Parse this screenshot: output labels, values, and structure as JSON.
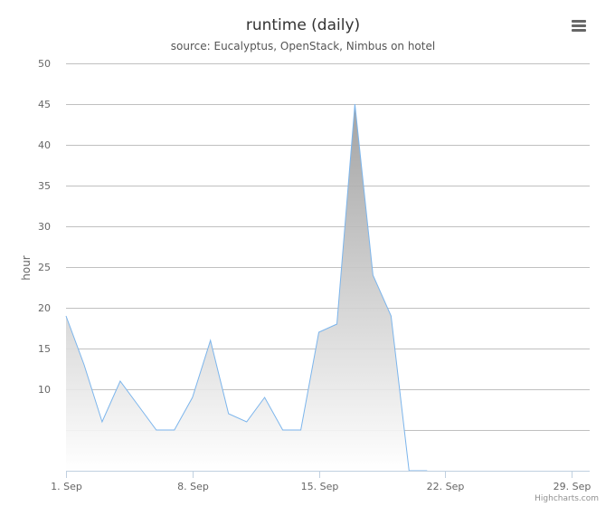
{
  "chart_data": {
    "type": "area",
    "title": "runtime (daily)",
    "subtitle": "source: Eucalyptus, OpenStack, Nimbus on hotel",
    "ylabel": "hour",
    "xlabel": "",
    "ylim": [
      0,
      50
    ],
    "yticks": [
      50,
      45,
      40,
      35,
      30,
      25,
      20,
      15,
      10
    ],
    "xlim": [
      "2023-09-01",
      "2023-09-30"
    ],
    "xticks": [
      {
        "date": "2023-09-01",
        "label": "1. Sep"
      },
      {
        "date": "2023-09-08",
        "label": "8. Sep"
      },
      {
        "date": "2023-09-15",
        "label": "15. Sep"
      },
      {
        "date": "2023-09-22",
        "label": "22. Sep"
      },
      {
        "date": "2023-09-29",
        "label": "29. Sep"
      }
    ],
    "x": [
      "2023-09-01",
      "2023-09-02",
      "2023-09-03",
      "2023-09-04",
      "2023-09-05",
      "2023-09-06",
      "2023-09-07",
      "2023-09-08",
      "2023-09-09",
      "2023-09-10",
      "2023-09-11",
      "2023-09-12",
      "2023-09-13",
      "2023-09-14",
      "2023-09-15",
      "2023-09-16",
      "2023-09-17",
      "2023-09-18",
      "2023-09-19",
      "2023-09-20",
      "2023-09-21"
    ],
    "series": [
      {
        "values": [
          19,
          13,
          6,
          11,
          8,
          5,
          5,
          9,
          16,
          7,
          6,
          9,
          5,
          5,
          17,
          18,
          45,
          24,
          19,
          0,
          0
        ]
      }
    ],
    "grid": true,
    "legend": "none",
    "colors": {
      "line": "#7cb5ec",
      "fill_top": "#999999",
      "fill_bottom": "#ffffff",
      "grid": "#c0c0c0",
      "axis": "#c0d0e0",
      "text": "#333333",
      "label": "#666666"
    },
    "credits": "Highcharts.com"
  },
  "menu": {
    "icon": "hamburger-menu-icon"
  }
}
